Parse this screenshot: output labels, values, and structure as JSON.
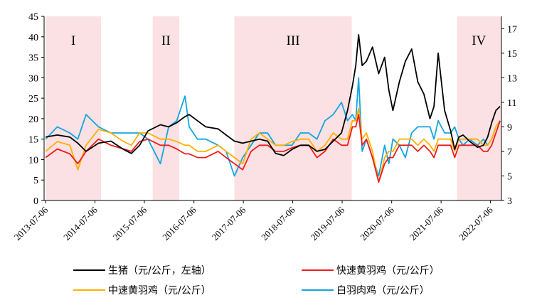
{
  "chart_data": {
    "type": "line",
    "x_ticks": [
      "2013-07-06",
      "2014-07-06",
      "2015-07-06",
      "2016-07-06",
      "2017-07-06",
      "2018-07-06",
      "2019-07-06",
      "2020-07-06",
      "2021-07-06",
      "2022-07-06"
    ],
    "y_left": {
      "lim": [
        0,
        45
      ],
      "ticks": [
        0,
        5,
        10,
        15,
        20,
        25,
        30,
        35,
        40,
        45
      ]
    },
    "y_right": {
      "lim": [
        3,
        18
      ],
      "ticks": [
        3,
        5,
        7,
        9,
        11,
        13,
        15,
        17
      ]
    },
    "periods": [
      {
        "label": "I",
        "start": "2013-07-06",
        "end": "2014-08-20"
      },
      {
        "label": "II",
        "start": "2015-09-05",
        "end": "2016-03-20"
      },
      {
        "label": "III",
        "start": "2017-05-01",
        "end": "2019-09-15"
      },
      {
        "label": "IV",
        "start": "2021-11-01",
        "end": "2022-09-20"
      }
    ],
    "series": [
      {
        "name": "生猪（元/公斤，左轴）",
        "axis": "left",
        "color": "#000000",
        "x": [
          "2013-07-06",
          "2013-10-01",
          "2014-01-01",
          "2014-03-01",
          "2014-05-01",
          "2014-08-01",
          "2014-11-01",
          "2015-02-01",
          "2015-04-01",
          "2015-06-01",
          "2015-08-01",
          "2015-11-01",
          "2016-01-01",
          "2016-03-01",
          "2016-05-01",
          "2016-06-01",
          "2016-08-01",
          "2016-10-01",
          "2017-01-01",
          "2017-03-01",
          "2017-05-01",
          "2017-07-01",
          "2017-09-01",
          "2017-11-01",
          "2018-01-01",
          "2018-03-01",
          "2018-05-01",
          "2018-07-01",
          "2018-09-01",
          "2018-11-01",
          "2019-01-01",
          "2019-03-01",
          "2019-05-01",
          "2019-07-01",
          "2019-08-15",
          "2019-09-20",
          "2019-10-15",
          "2019-11-05",
          "2019-12-01",
          "2020-01-01",
          "2020-02-15",
          "2020-04-01",
          "2020-05-15",
          "2020-06-15",
          "2020-07-15",
          "2020-09-01",
          "2020-10-15",
          "2020-12-01",
          "2021-01-15",
          "2021-03-01",
          "2021-04-15",
          "2021-05-15",
          "2021-06-15",
          "2021-08-01",
          "2021-09-15",
          "2021-10-15",
          "2021-11-15",
          "2021-12-15",
          "2022-02-01",
          "2022-04-01",
          "2022-05-15",
          "2022-06-15",
          "2022-07-15",
          "2022-08-15",
          "2022-09-15"
        ],
        "y": [
          15.5,
          16,
          15.5,
          14,
          12,
          14,
          14.5,
          12.5,
          11.5,
          13.5,
          17,
          18.5,
          18,
          19,
          20.5,
          21,
          19.5,
          18,
          17.5,
          16,
          14.5,
          14,
          14.5,
          15,
          14.5,
          11.5,
          11,
          12.5,
          13.5,
          13.5,
          12,
          12.5,
          14.5,
          16.5,
          22,
          28,
          33,
          40.5,
          33,
          34,
          37.5,
          31,
          35,
          27,
          22,
          29,
          34,
          37,
          29,
          26,
          20,
          23,
          36,
          22,
          17,
          12.5,
          15.5,
          16,
          14.5,
          13,
          13.5,
          15.5,
          19,
          22,
          23
        ]
      },
      {
        "name": "快速黄羽鸡（元/公斤）",
        "axis": "right",
        "color": "#ee1c1c",
        "x": [
          "2013-07-06",
          "2013-10-01",
          "2014-01-01",
          "2014-03-01",
          "2014-05-01",
          "2014-08-01",
          "2014-11-01",
          "2015-02-01",
          "2015-04-01",
          "2015-06-01",
          "2015-08-01",
          "2015-11-01",
          "2016-01-01",
          "2016-03-01",
          "2016-05-01",
          "2016-06-01",
          "2016-08-01",
          "2016-10-01",
          "2017-01-01",
          "2017-03-01",
          "2017-05-01",
          "2017-07-01",
          "2017-09-01",
          "2017-11-01",
          "2018-01-01",
          "2018-03-01",
          "2018-05-01",
          "2018-07-01",
          "2018-09-01",
          "2018-11-01",
          "2019-01-01",
          "2019-03-01",
          "2019-05-01",
          "2019-07-01",
          "2019-08-15",
          "2019-09-20",
          "2019-10-15",
          "2019-11-05",
          "2019-12-01",
          "2020-01-01",
          "2020-02-15",
          "2020-04-01",
          "2020-05-15",
          "2020-06-15",
          "2020-07-15",
          "2020-09-01",
          "2020-10-15",
          "2020-12-01",
          "2021-01-15",
          "2021-03-01",
          "2021-04-15",
          "2021-05-15",
          "2021-06-15",
          "2021-08-01",
          "2021-09-15",
          "2021-10-15",
          "2021-11-15",
          "2021-12-15",
          "2022-02-01",
          "2022-04-01",
          "2022-05-15",
          "2022-06-15",
          "2022-07-15",
          "2022-08-15",
          "2022-09-15"
        ],
        "y": [
          6.5,
          7.2,
          6.8,
          6,
          7,
          8,
          7.5,
          7.2,
          7,
          7.8,
          8,
          7.5,
          7.5,
          7.2,
          6.8,
          6.8,
          6.5,
          6.5,
          7,
          6.5,
          6,
          5.5,
          7,
          7.5,
          7.5,
          7,
          7,
          7.3,
          7.5,
          7.5,
          6.5,
          7,
          8,
          7.5,
          7.5,
          9,
          9,
          10,
          7.5,
          8,
          6.5,
          4.5,
          6,
          6.5,
          6.5,
          7.5,
          7.5,
          7.5,
          7,
          7.5,
          7,
          6.5,
          7.5,
          7.5,
          7.5,
          6.5,
          7.5,
          7.5,
          7.5,
          7.5,
          7,
          7,
          7.5,
          8.5,
          9.5
        ]
      },
      {
        "name": "中速黄羽鸡（元/公斤）",
        "axis": "right",
        "color": "#ffb000",
        "x": [
          "2013-07-06",
          "2013-10-01",
          "2014-01-01",
          "2014-03-01",
          "2014-05-01",
          "2014-08-01",
          "2014-11-01",
          "2015-02-01",
          "2015-04-01",
          "2015-06-01",
          "2015-08-01",
          "2015-11-01",
          "2016-01-01",
          "2016-03-01",
          "2016-05-01",
          "2016-06-01",
          "2016-08-01",
          "2016-10-01",
          "2017-01-01",
          "2017-03-01",
          "2017-05-01",
          "2017-07-01",
          "2017-09-01",
          "2017-11-01",
          "2018-01-01",
          "2018-03-01",
          "2018-05-01",
          "2018-07-01",
          "2018-09-01",
          "2018-11-01",
          "2019-01-01",
          "2019-03-01",
          "2019-05-01",
          "2019-07-01",
          "2019-08-15",
          "2019-09-20",
          "2019-10-15",
          "2019-11-05",
          "2019-12-01",
          "2020-01-01",
          "2020-02-15",
          "2020-04-01",
          "2020-05-15",
          "2020-06-15",
          "2020-07-15",
          "2020-09-01",
          "2020-10-15",
          "2020-12-01",
          "2021-01-15",
          "2021-03-01",
          "2021-04-15",
          "2021-05-15",
          "2021-06-15",
          "2021-08-01",
          "2021-09-15",
          "2021-10-15",
          "2021-11-15",
          "2021-12-15",
          "2022-02-01",
          "2022-04-01",
          "2022-05-15",
          "2022-06-15",
          "2022-07-15",
          "2022-08-15",
          "2022-09-15"
        ],
        "y": [
          7,
          7.8,
          7.5,
          5.5,
          7.5,
          8.8,
          8.5,
          7.8,
          7.5,
          8.5,
          8.5,
          8,
          8,
          7.8,
          7.5,
          7.5,
          7,
          7,
          7.5,
          7,
          6.5,
          6,
          8,
          8.5,
          8,
          7.5,
          7.5,
          7.8,
          8,
          8,
          7,
          7.5,
          8.5,
          8,
          8,
          9.5,
          9.5,
          10.5,
          8,
          8.5,
          7,
          4.5,
          6.5,
          7,
          7,
          8,
          8,
          8,
          7.5,
          8,
          7.5,
          7,
          8,
          8,
          8,
          7,
          8,
          8,
          8,
          8,
          7.5,
          7.5,
          8,
          9,
          9.5
        ]
      },
      {
        "name": "白羽肉鸡（元/公斤）",
        "axis": "right",
        "color": "#14a5e0",
        "x": [
          "2013-07-06",
          "2013-10-01",
          "2014-01-01",
          "2014-03-01",
          "2014-05-01",
          "2014-08-01",
          "2014-11-01",
          "2015-02-01",
          "2015-04-01",
          "2015-06-01",
          "2015-08-01",
          "2015-11-01",
          "2016-01-01",
          "2016-03-01",
          "2016-05-01",
          "2016-06-01",
          "2016-08-01",
          "2016-10-01",
          "2017-01-01",
          "2017-03-01",
          "2017-05-01",
          "2017-07-01",
          "2017-09-01",
          "2017-11-01",
          "2018-01-01",
          "2018-03-01",
          "2018-05-01",
          "2018-07-01",
          "2018-09-01",
          "2018-11-01",
          "2019-01-01",
          "2019-03-01",
          "2019-05-01",
          "2019-07-01",
          "2019-08-15",
          "2019-09-20",
          "2019-10-15",
          "2019-11-05",
          "2019-12-01",
          "2020-01-01",
          "2020-02-15",
          "2020-04-01",
          "2020-05-15",
          "2020-06-15",
          "2020-07-15",
          "2020-09-01",
          "2020-10-15",
          "2020-12-01",
          "2021-01-15",
          "2021-03-01",
          "2021-04-15",
          "2021-05-15",
          "2021-06-15",
          "2021-08-01",
          "2021-09-15",
          "2021-10-15",
          "2021-11-15",
          "2021-12-15",
          "2022-02-01",
          "2022-04-01",
          "2022-05-15",
          "2022-06-15",
          "2022-07-15",
          "2022-08-15",
          "2022-09-15"
        ],
        "y": [
          8,
          9,
          8.5,
          8,
          10,
          9,
          8.5,
          8.5,
          8.5,
          8.5,
          8,
          6,
          9,
          9.5,
          11.5,
          9,
          8,
          8,
          7.5,
          7,
          5,
          6.5,
          7.5,
          8.5,
          8.5,
          7.5,
          7.5,
          7.5,
          8.5,
          8.5,
          8,
          9.5,
          10,
          11,
          9.5,
          10,
          9.5,
          13,
          7,
          8,
          6.5,
          5,
          7.5,
          6,
          8,
          7.5,
          6.5,
          8.5,
          9,
          9,
          9,
          8,
          9.5,
          8.5,
          8.5,
          9,
          8,
          7.5,
          8,
          7.5,
          8,
          7.5,
          8,
          9,
          9.5
        ]
      }
    ]
  }
}
